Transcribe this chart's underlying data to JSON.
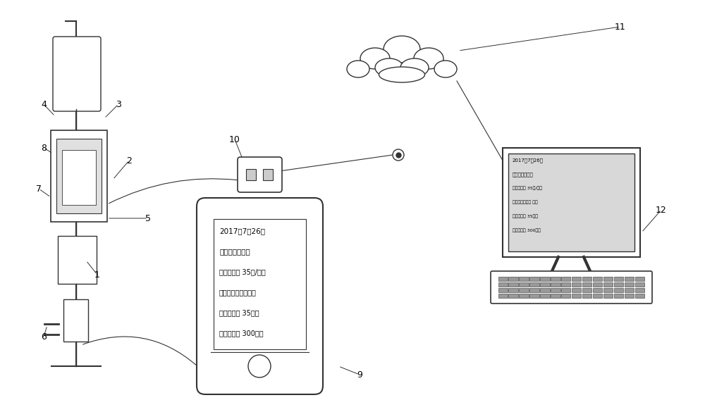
{
  "bg_color": "#ffffff",
  "line_color": "#333333",
  "phone_text_line1": "2017年7月26日",
  "phone_text_line2": "实时输液数据：",
  "phone_text_line3": "当前滴速： 35滴/分钟",
  "phone_text_line4": "当前滴速情况：正常",
  "phone_text_line5": "还剩时间： 35分钟",
  "phone_text_line6": "还剩容量： 300毫升",
  "computer_text_line1": "2017年7月26日",
  "computer_text_line2": "实时输液数据：",
  "computer_text_line3": "当前滴速： 35滴/分钟",
  "computer_text_line4": "当前滴速情况： 正常",
  "computer_text_line5": "还剩时间： 35分钟",
  "computer_text_line6": "还剩容量： 300毫升"
}
